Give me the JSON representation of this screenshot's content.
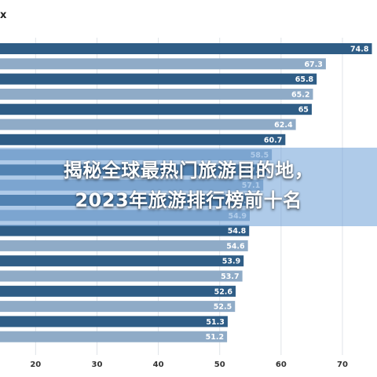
{
  "corner_label": "x",
  "overlay": {
    "line1": "揭秘全球最热门旅游目的地，",
    "line2": "2023年旅游排行榜前十名"
  },
  "colors": {
    "dark_bar": "#2f5d86",
    "light_bar": "#8fabc7",
    "grid": "#dfe3e8",
    "overlay": "#6ea0d7"
  },
  "chart_data": {
    "type": "bar",
    "orientation": "horizontal",
    "values": [
      74.8,
      67.3,
      65.8,
      65.2,
      65,
      62.4,
      60.7,
      58.5,
      57.6,
      57.1,
      55.7,
      54.9,
      54.8,
      54.6,
      53.9,
      53.7,
      52.6,
      52.5,
      51.3,
      51.2
    ],
    "value_labels": [
      "74.8",
      "67.3",
      "65.8",
      "65.2",
      "65",
      "62.4",
      "60.7",
      "58.5",
      "57.6",
      "57.1",
      "55.7",
      "54.9",
      "54.8",
      "54.6",
      "53.9",
      "53.7",
      "52.6",
      "52.5",
      "51.3",
      "51.2"
    ],
    "x_ticks": [
      "20",
      "30",
      "40",
      "50",
      "60",
      "70"
    ],
    "xlim": [
      14.2,
      77
    ],
    "grid": true,
    "title": "",
    "xlabel": "",
    "ylabel": ""
  }
}
